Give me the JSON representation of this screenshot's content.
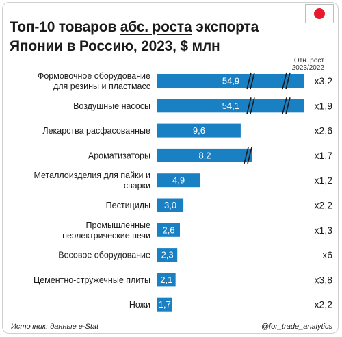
{
  "header": {
    "title_pre": "Топ-10 товаров ",
    "title_underlined": "абс. роста",
    "title_post": " экспорта Японии в Россию, 2023, $ млн",
    "flag_icon": "japan-flag-icon",
    "rate_header": "Отн. рост 2023/2022"
  },
  "footer": {
    "source": "Источник: данные e-Stat",
    "handle": "@for_trade_analytics"
  },
  "colors": {
    "bar": "#1a80c4",
    "bar_label": "#ffffff",
    "break_mark": "#1a1a1a"
  },
  "chart_data": {
    "type": "bar",
    "orientation": "horizontal",
    "categories": [
      [
        "Формовочное оборудование",
        "для резины и пластмасс"
      ],
      [
        "Воздушные насосы"
      ],
      [
        "Лекарства расфасованные"
      ],
      [
        "Ароматизаторы"
      ],
      [
        "Металлоизделия для пайки и",
        "сварки"
      ],
      [
        "Пестициды"
      ],
      [
        "Промышленные",
        "неэлектрические печи"
      ],
      [
        "Весовое оборудование"
      ],
      [
        "Цементно-стружечные плиты"
      ],
      [
        "Ножи"
      ]
    ],
    "values": [
      54.9,
      54.1,
      9.6,
      8.2,
      4.9,
      3.0,
      2.6,
      2.3,
      2.1,
      1.7
    ],
    "value_labels": [
      "54,9",
      "54,1",
      "9,6",
      "8,2",
      "4,9",
      "3,0",
      "2,6",
      "2,3",
      "2,1",
      "1,7"
    ],
    "relative_growth": [
      "x3,2",
      "x1,9",
      "x2,6",
      "x1,7",
      "x1,2",
      "x2,2",
      "x1,3",
      "x6",
      "x3,8",
      "x2,2"
    ],
    "broken_axis_bars": [
      0,
      1,
      3
    ],
    "grid": false,
    "legend": "none"
  }
}
